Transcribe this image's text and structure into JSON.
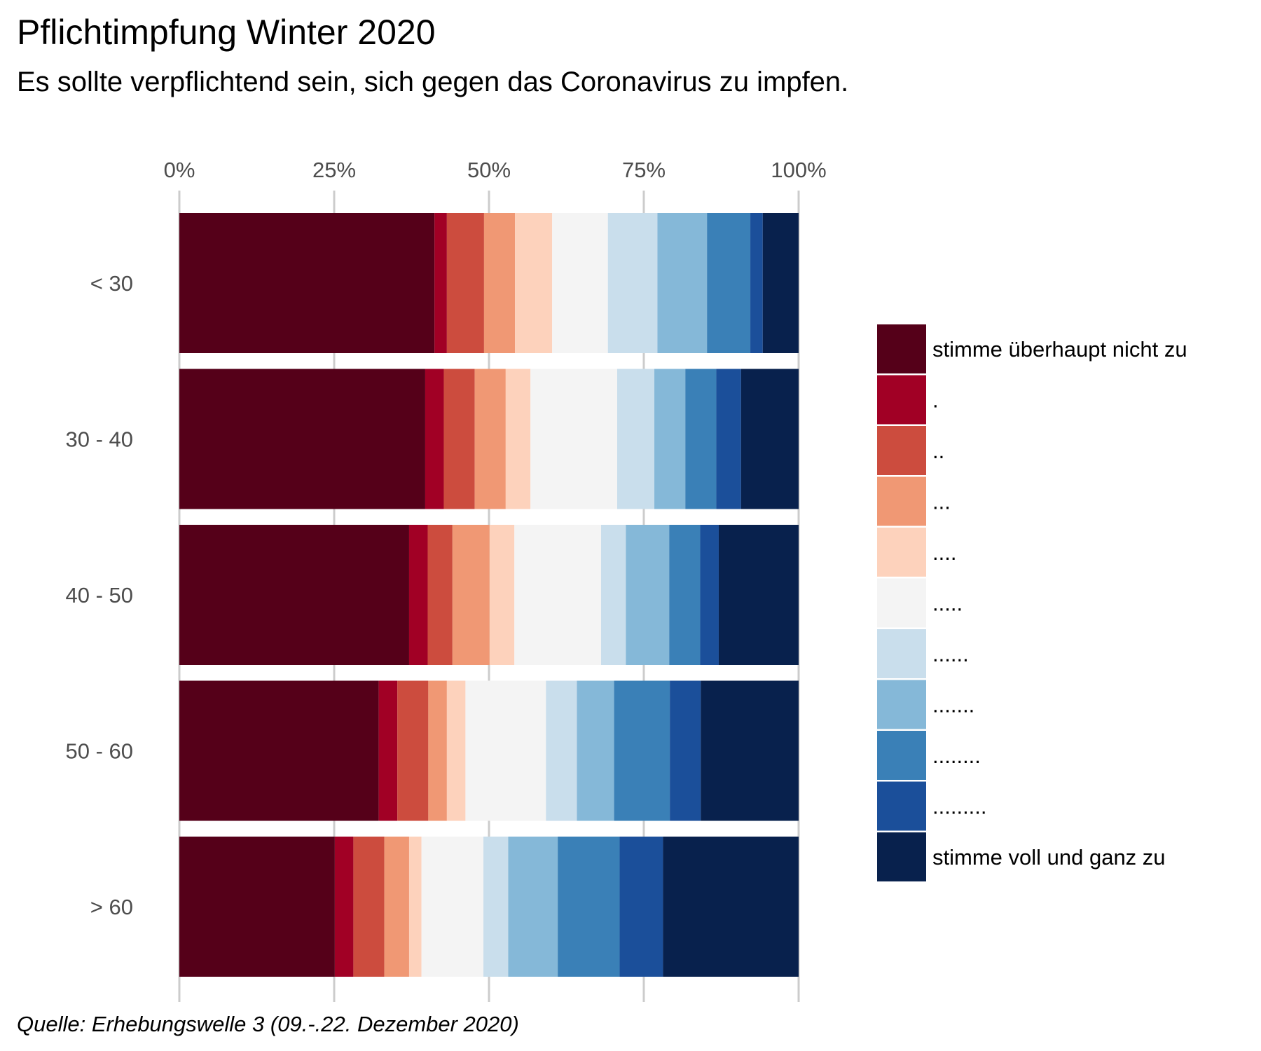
{
  "chart_data": {
    "type": "bar",
    "orientation": "horizontal",
    "stacked": true,
    "title": "Pflichtimpfung Winter 2020",
    "subtitle": "Es sollte verpflichtend sein, sich gegen das Coronavirus zu impfen.",
    "caption": "Quelle: Erhebungswelle 3 (09.-.22. Dezember 2020)",
    "xlabel": "",
    "ylabel": "",
    "xlim": [
      0,
      100
    ],
    "x_ticks": [
      "0%",
      "25%",
      "50%",
      "75%",
      "100%"
    ],
    "x_axis_position": "top",
    "categories": [
      "< 30",
      "30 - 40",
      "40 - 50",
      "50 - 60",
      "> 60"
    ],
    "legend_position": "right",
    "series": [
      {
        "name": "stimme überhaupt nicht zu",
        "color": "#550019",
        "values": [
          41.2,
          39.7,
          37.1,
          32.2,
          25.1
        ]
      },
      {
        "name": ".",
        "color": "#a10025",
        "values": [
          2.0,
          3.0,
          3.0,
          3.0,
          3.0
        ]
      },
      {
        "name": "..",
        "color": "#cc4c3e",
        "values": [
          6.0,
          5.0,
          4.0,
          5.0,
          5.0
        ]
      },
      {
        "name": "...",
        "color": "#f09874",
        "values": [
          5.0,
          5.0,
          6.0,
          3.0,
          4.0
        ]
      },
      {
        "name": "....",
        "color": "#fdd2bc",
        "values": [
          6.0,
          4.0,
          4.0,
          3.0,
          2.0
        ]
      },
      {
        "name": ".....",
        "color": "#f4f4f4",
        "values": [
          9.0,
          14.0,
          14.0,
          13.0,
          10.0
        ]
      },
      {
        "name": "......",
        "color": "#c9deec",
        "values": [
          8.0,
          6.0,
          4.0,
          5.0,
          4.0
        ]
      },
      {
        "name": ".......",
        "color": "#85b8d8",
        "values": [
          8.0,
          5.0,
          7.0,
          6.0,
          8.0
        ]
      },
      {
        "name": "........",
        "color": "#3a80b7",
        "values": [
          7.0,
          5.0,
          5.0,
          9.0,
          10.0
        ]
      },
      {
        "name": ".........",
        "color": "#1b4f9a",
        "values": [
          2.0,
          4.0,
          3.0,
          5.0,
          7.0
        ]
      },
      {
        "name": "stimme voll und ganz zu",
        "color": "#08214d",
        "values": [
          5.8,
          9.3,
          12.9,
          15.8,
          21.9
        ]
      }
    ]
  }
}
